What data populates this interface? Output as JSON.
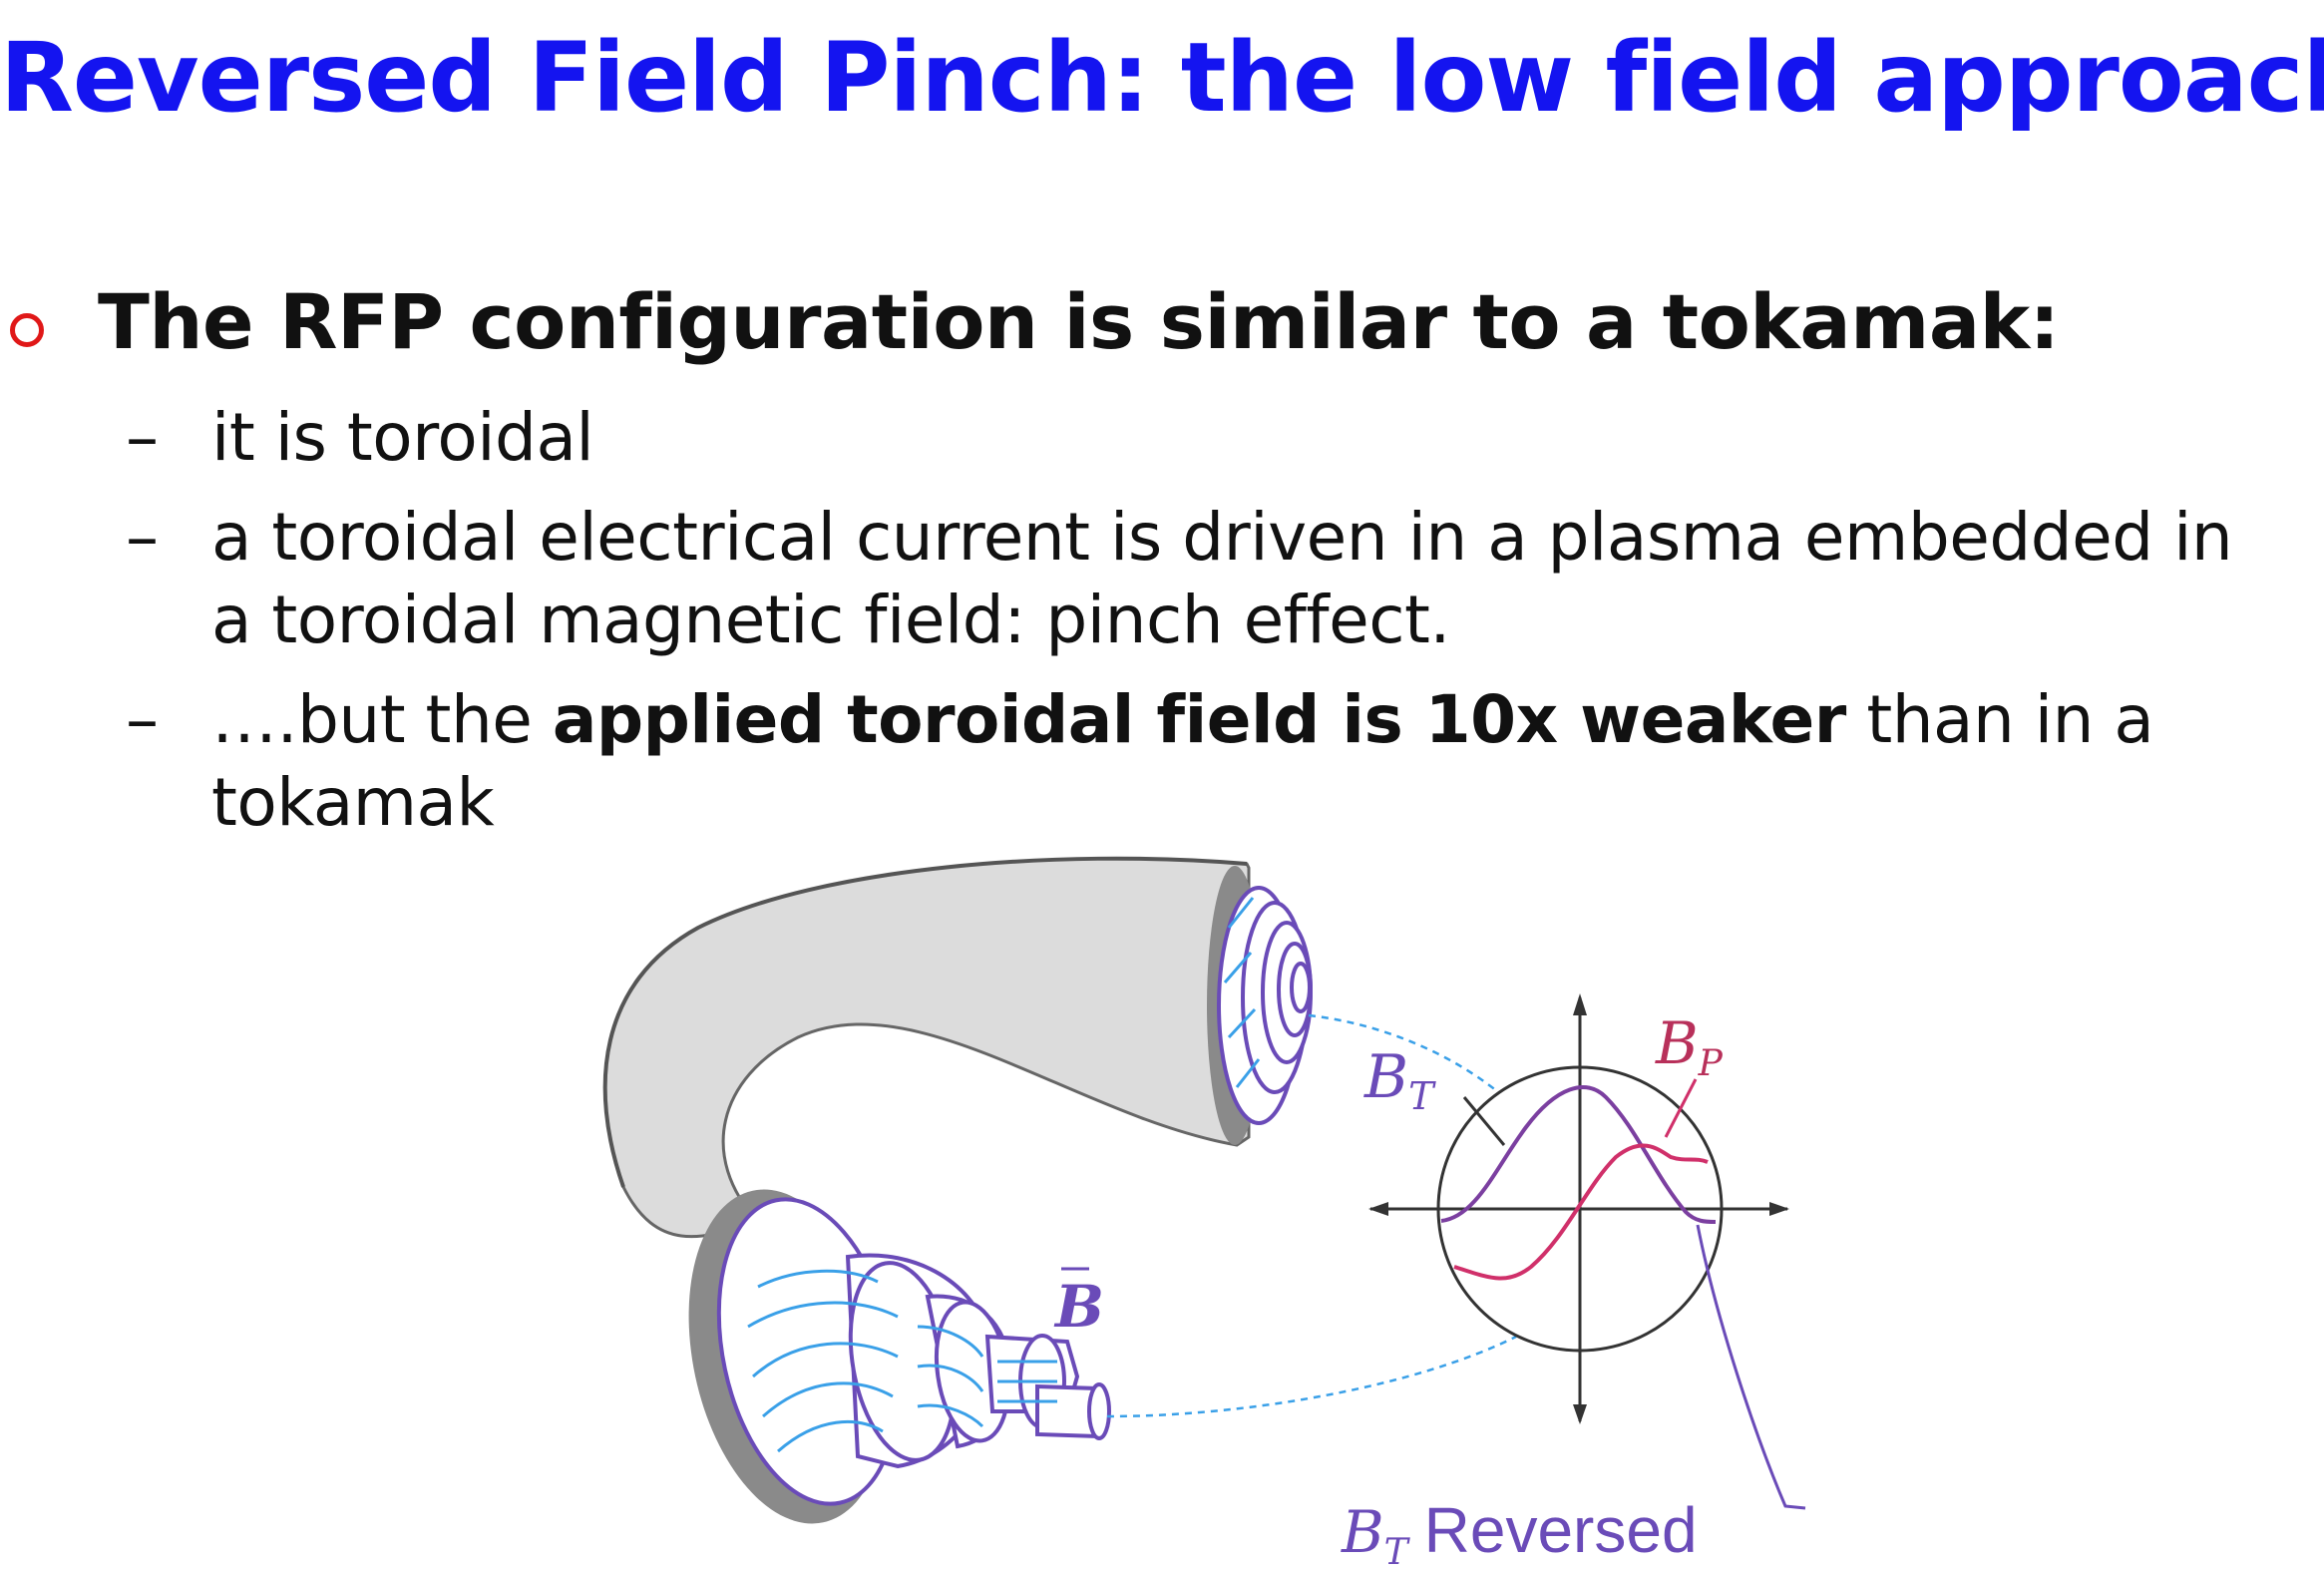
{
  "slide": {
    "title": "Reversed Field Pinch: the low field approach",
    "bullet": "The RFP configuration is similar to a tokamak:",
    "sub1": "it is toroidal",
    "sub2_line1": "a toroidal electrical current is driven in a plasma embedded in",
    "sub2_line2": "a toroidal magnetic field:  pinch effect.",
    "sub3_pre": "….but the ",
    "sub3_bold": "applied toroidal field is 10x weaker",
    "sub3_post": " than in a",
    "sub3_line2": "tokamak",
    "dash": "–"
  },
  "figure": {
    "label_B": "B",
    "label_BT_B": "B",
    "label_BT_sub": "T",
    "label_BP_B": "B",
    "label_BP_sub": "P",
    "label_reversed_B": "B",
    "label_reversed_sub": "T",
    "label_reversed_text": "Reversed",
    "colors": {
      "torus_fill": "#dcdcdc",
      "torus_edge": "#8a8a8a",
      "field_lines": "#3aa0e8",
      "coil": "#6a4bb8",
      "bt_curve": "#7b3fa0",
      "bp_curve": "#d0306a"
    }
  }
}
